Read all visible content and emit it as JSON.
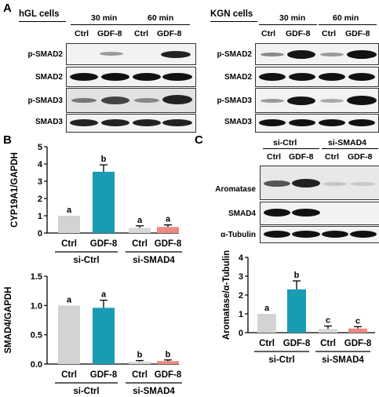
{
  "panel_labels": {
    "a": "A",
    "b": "B",
    "c": "C"
  },
  "panel_a": {
    "hgl": {
      "title": "hGL cells",
      "time_30": "30 min",
      "time_60": "60 min",
      "lanes": [
        "Ctrl",
        "GDF-8",
        "Ctrl",
        "GDF-8"
      ],
      "rows": [
        "p-SMAD2",
        "SMAD2",
        "p-SMAD3",
        "SMAD3"
      ]
    },
    "kgn": {
      "title": "KGN cells",
      "time_30": "30 min",
      "time_60": "60 min",
      "lanes": [
        "Ctrl",
        "GDF-8",
        "Ctrl",
        "GDF-8"
      ],
      "rows": [
        "p-SMAD2",
        "SMAD2",
        "p-SMAD3",
        "SMAD3"
      ]
    }
  },
  "panel_c_blot": {
    "group1": "si-Ctrl",
    "group2": "si-SMAD4",
    "lanes": [
      "Ctrl",
      "GDF-8",
      "Ctrl",
      "GDF-8"
    ],
    "rows": [
      "Aromatase",
      "SMAD4",
      "α-Tubulin"
    ]
  },
  "colors": {
    "ctrl": "#d3d3d3",
    "gdf8": "#1a9bb4",
    "si_ctrl": "#d8d8d8",
    "si_gdf8": "#ef8a80"
  },
  "chart_data": [
    {
      "type": "bar",
      "ylabel": "CYP19A1/GAPDH",
      "categories": [
        "Ctrl",
        "GDF-8",
        "Ctrl",
        "GDF-8"
      ],
      "groups": [
        "si-Ctrl",
        "si-SMAD4"
      ],
      "values": [
        1.0,
        3.55,
        0.3,
        0.35
      ],
      "errors": [
        0,
        0.4,
        0.12,
        0.12
      ],
      "letters": [
        "a",
        "b",
        "a",
        "a"
      ],
      "yticks": [
        "0",
        "1",
        "2",
        "3",
        "4",
        "5"
      ],
      "ylim": [
        0,
        5
      ]
    },
    {
      "type": "bar",
      "ylabel": "SMAD4/GAPDH",
      "categories": [
        "Ctrl",
        "GDF-8",
        "Ctrl",
        "GDF-8"
      ],
      "groups": [
        "si-Ctrl",
        "si-SMAD4"
      ],
      "values": [
        1.0,
        0.96,
        0.04,
        0.05
      ],
      "errors": [
        0,
        0.13,
        0.02,
        0.02
      ],
      "letters": [
        "a",
        "a",
        "b",
        "b"
      ],
      "yticks": [
        "0.0",
        "0.5",
        "1.0",
        "1.5"
      ],
      "ylim": [
        0,
        1.5
      ]
    },
    {
      "type": "bar",
      "ylabel": "Aromatase/α-Tubulin",
      "categories": [
        "Ctrl",
        "GDF-8",
        "Ctrl",
        "GDF-8"
      ],
      "groups": [
        "si-Ctrl",
        "si-SMAD4"
      ],
      "values": [
        1.0,
        2.3,
        0.2,
        0.22
      ],
      "errors": [
        0,
        0.45,
        0.15,
        0.1
      ],
      "letters": [
        "a",
        "b",
        "c",
        "c"
      ],
      "yticks": [
        "0",
        "1",
        "2",
        "3",
        "4"
      ],
      "ylim": [
        0,
        4
      ]
    }
  ]
}
